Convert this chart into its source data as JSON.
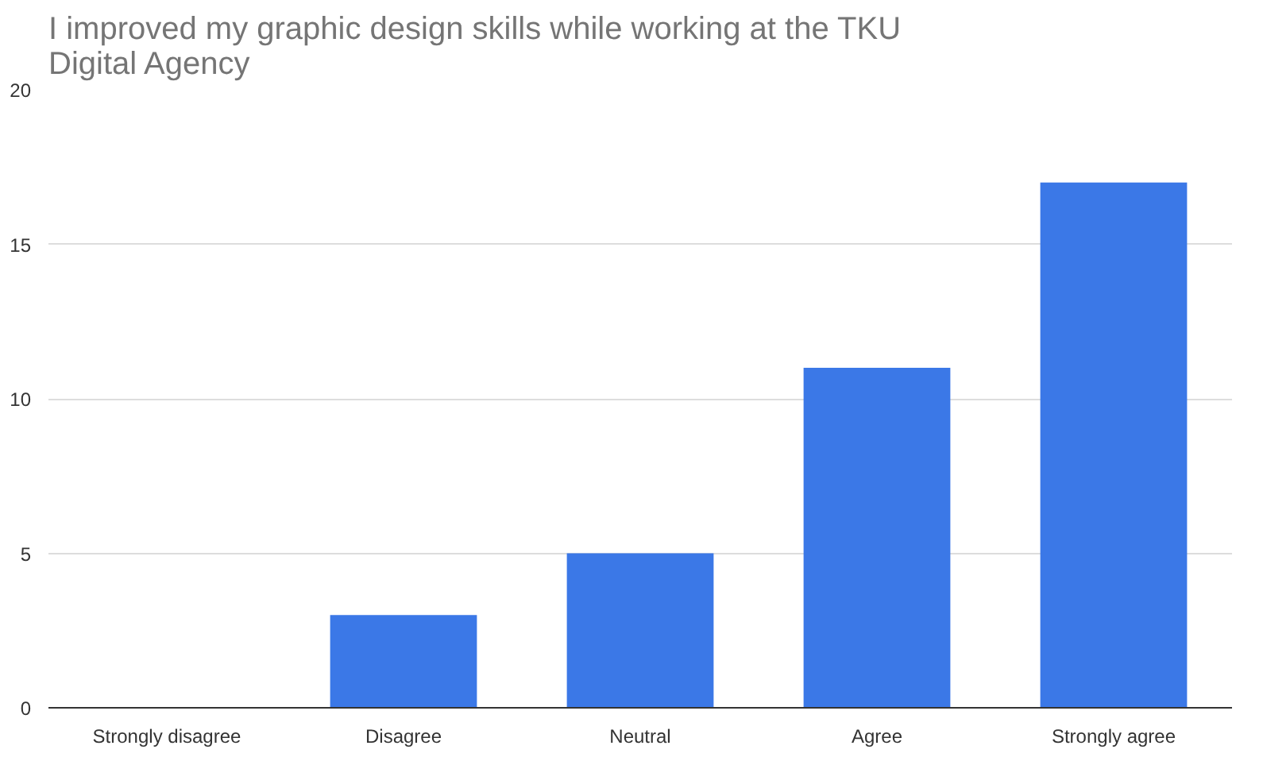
{
  "chart_data": {
    "type": "bar",
    "title": "I improved my graphic design skills while working at the TKU Digital Agency",
    "categories": [
      "Strongly disagree",
      "Disagree",
      "Neutral",
      "Agree",
      "Strongly agree"
    ],
    "values": [
      0,
      3,
      5,
      11,
      17
    ],
    "color": "#3b78e7",
    "ylim": [
      0,
      20
    ],
    "yticks": [
      0,
      5,
      10,
      15,
      20
    ],
    "grid": "y"
  }
}
